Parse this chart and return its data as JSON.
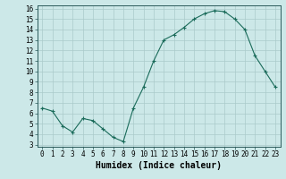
{
  "hours": [
    0,
    1,
    2,
    3,
    4,
    5,
    6,
    7,
    8,
    9,
    10,
    11,
    12,
    13,
    14,
    15,
    16,
    17,
    18,
    19,
    20,
    21,
    22,
    23
  ],
  "values": [
    6.5,
    6.2,
    4.8,
    4.2,
    5.5,
    5.3,
    4.5,
    3.7,
    3.3,
    6.5,
    8.5,
    11.0,
    13.0,
    13.5,
    14.2,
    15.0,
    15.5,
    15.8,
    15.7,
    15.0,
    14.0,
    11.5,
    10.0,
    8.5
  ],
  "line_color": "#1a6b5a",
  "bg_color": "#cce8e8",
  "grid_color": "#aacaca",
  "xlabel": "Humidex (Indice chaleur)",
  "ylim_min": 2.8,
  "ylim_max": 16.3,
  "yticks": [
    3,
    4,
    5,
    6,
    7,
    8,
    9,
    10,
    11,
    12,
    13,
    14,
    15,
    16
  ],
  "xticks": [
    0,
    1,
    2,
    3,
    4,
    5,
    6,
    7,
    8,
    9,
    10,
    11,
    12,
    13,
    14,
    15,
    16,
    17,
    18,
    19,
    20,
    21,
    22,
    23
  ],
  "tick_fontsize": 5.5,
  "label_fontsize": 7.0
}
